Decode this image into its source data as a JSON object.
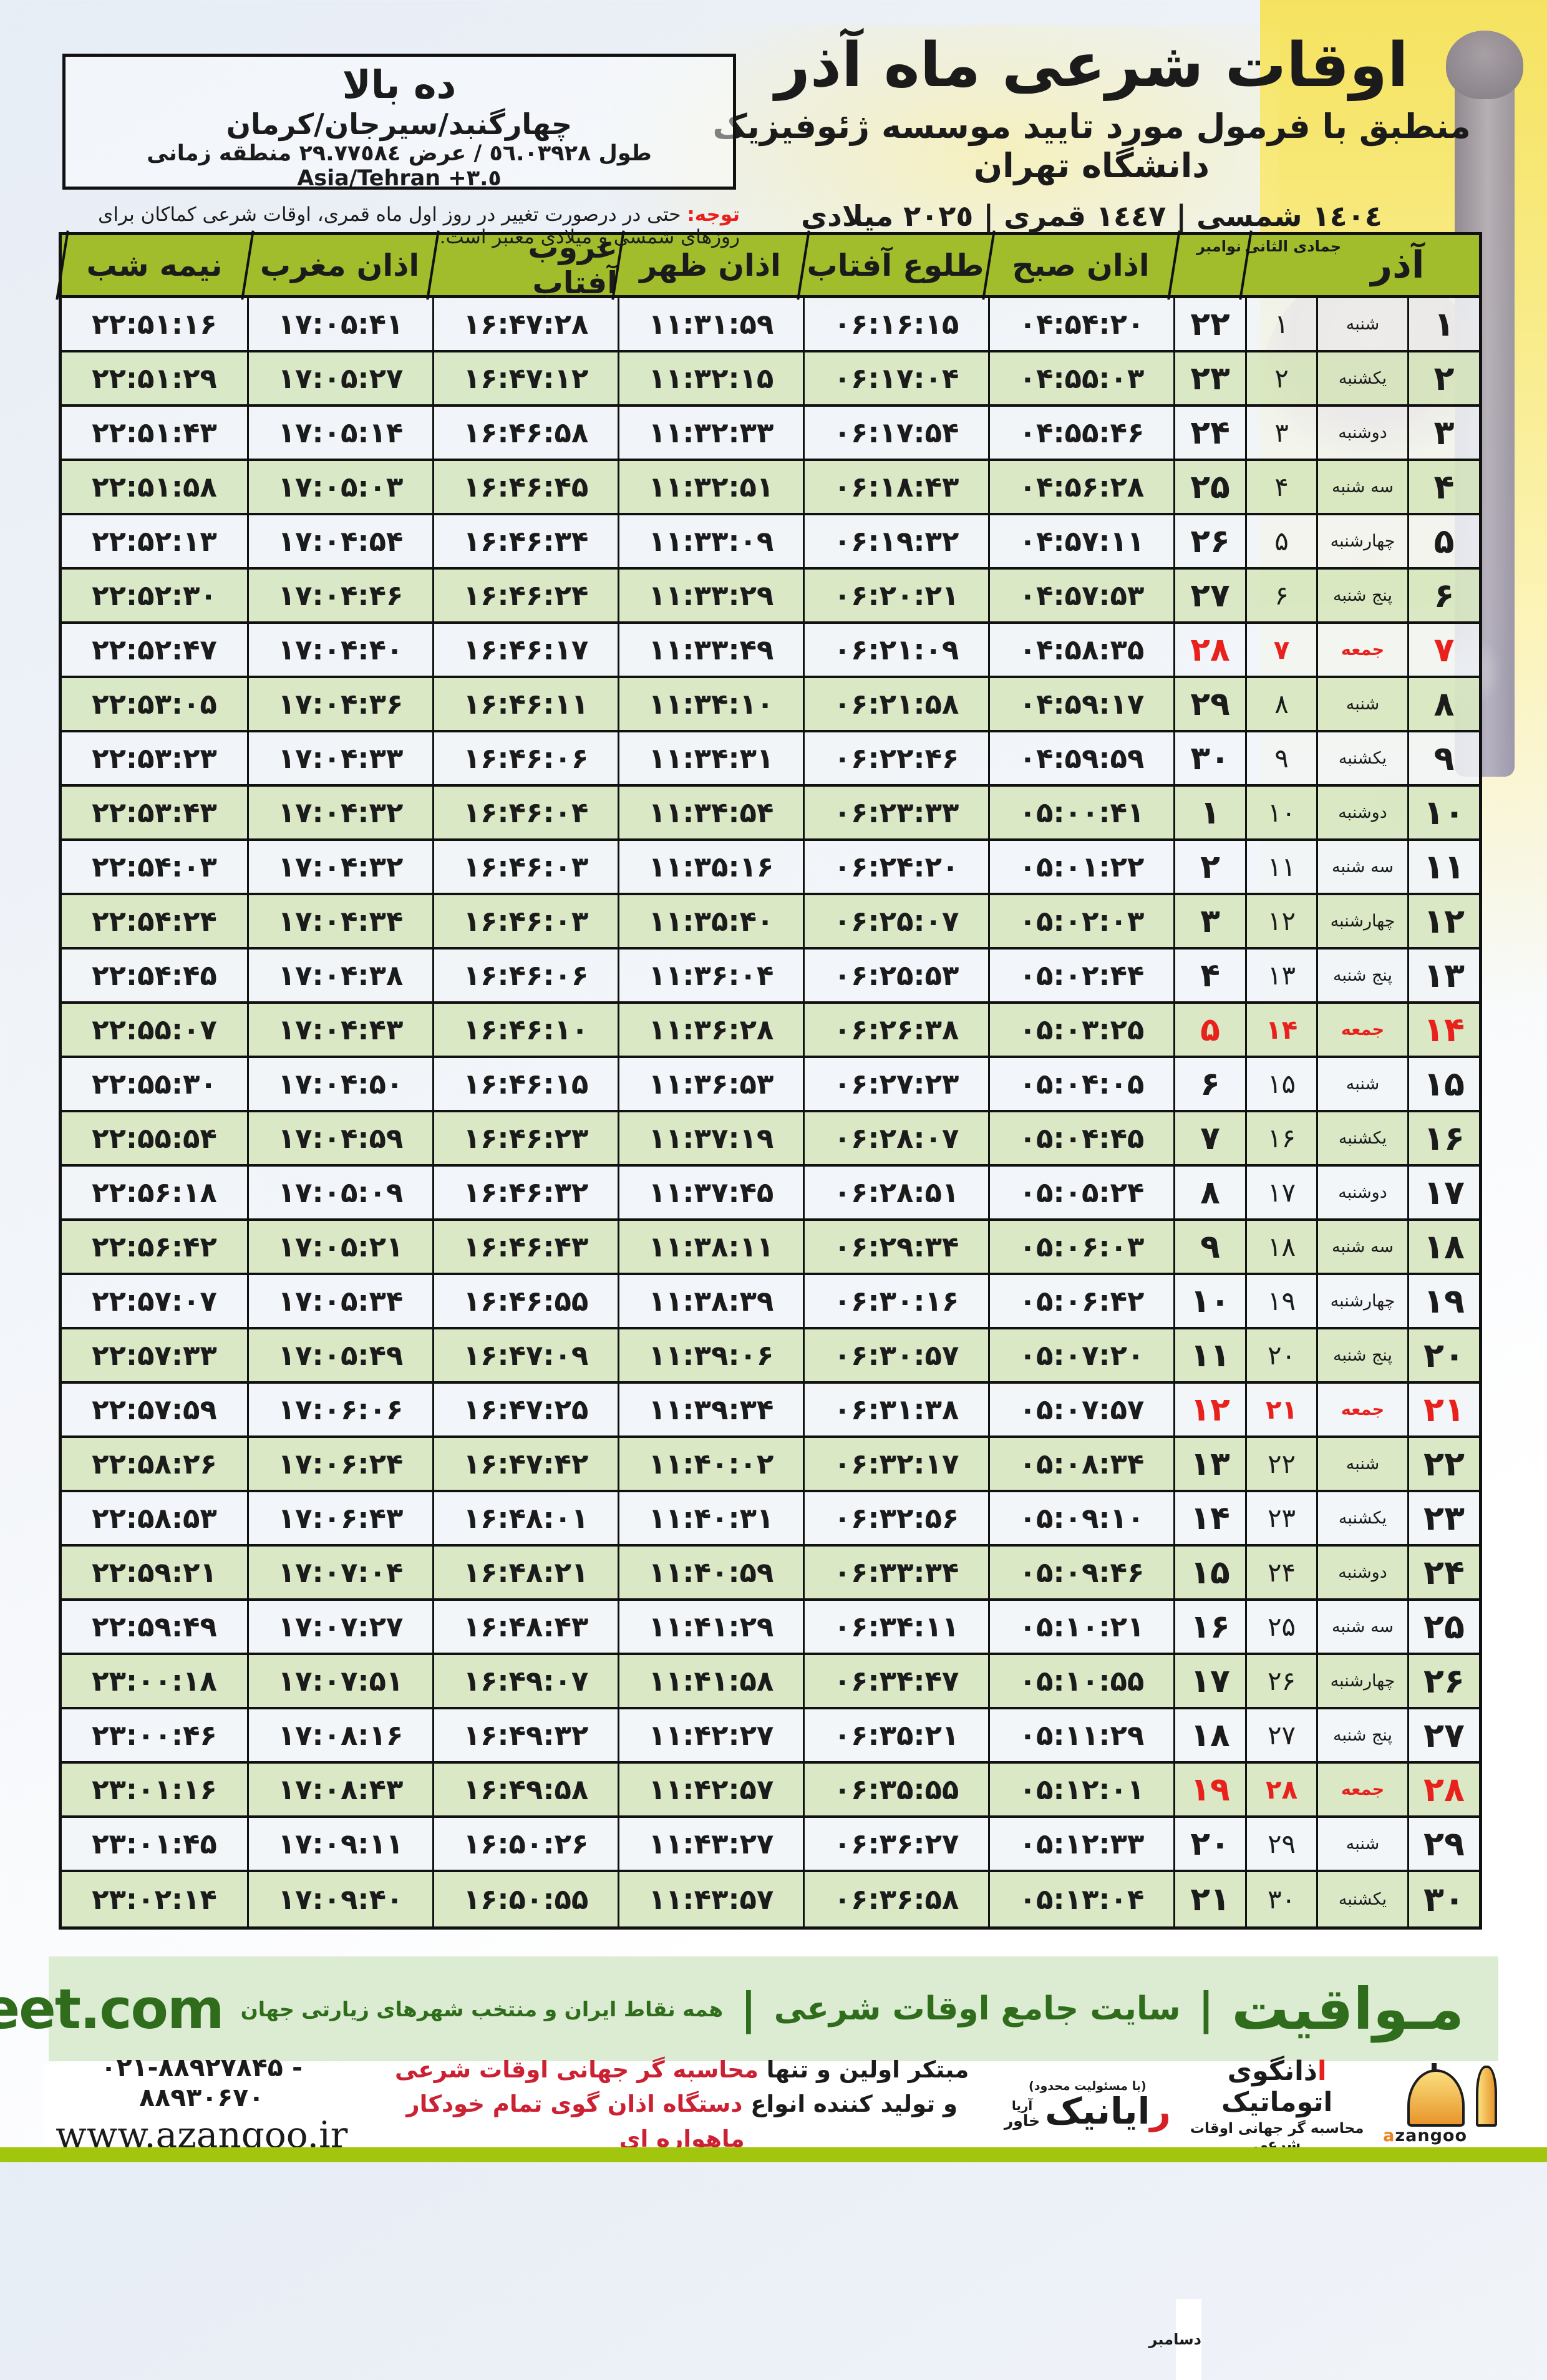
{
  "colors": {
    "red": "#e8211d",
    "green-header": "#a1bd2c",
    "band-bg": "#dcecd2",
    "band-text": "#2f6d1c",
    "bar-green": "#a2c50e"
  },
  "header": {
    "title": "اوقات شرعی ماه آذر",
    "subtitle": "منطبق با فرمول مورد تایید موسسه ژئوفیزیک دانشگاه تهران",
    "date_line": "١٤٠٤ شمسی | ١٤٤٧ قمری | ٢٠٢٥ میلادی"
  },
  "location": {
    "name": "ده بالا",
    "region": "چهارگنبد/سیرجان/کرمان",
    "coords": "طول ٥٦.٠٣٩٢٨ / عرض ٢٩.٧٧٥٨٤ منطقه زمانی",
    "timezone": "Asia/Tehran +٣.٥"
  },
  "notice": {
    "label": "توجه:",
    "text": "حتی در درصورت تغییر در روز اول ماه قمری، اوقات شرعی کماکان برای روزهای شمسی و میلادی معتبر است."
  },
  "table": {
    "month_header": "آذر",
    "lunar_header": "جمادی الثانی",
    "greg_header_top": "نوامبر",
    "greg_header_bottom": "دسامبر",
    "time_headers": {
      "fajr": "اذان صبح",
      "sunrise": "طلوع آفتاب",
      "dhuhr": "اذان ظهر",
      "sunset": "غروب آفتاب",
      "maghrib": "اذان مغرب",
      "midnight": "نیمه شب"
    },
    "rows": [
      {
        "azar": "۱",
        "weekday": "شنبه",
        "lunar": "۱",
        "greg": "۲۲",
        "fajr": "۰۴:۵۴:۲۰",
        "sunrise": "۰۶:۱۶:۱۵",
        "dhuhr": "۱۱:۳۱:۵۹",
        "sunset": "۱۶:۴۷:۲۸",
        "maghrib": "۱۷:۰۵:۴۱",
        "midnight": "۲۲:۵۱:۱۶",
        "friday": false
      },
      {
        "azar": "۲",
        "weekday": "یکشنبه",
        "lunar": "۲",
        "greg": "۲۳",
        "fajr": "۰۴:۵۵:۰۳",
        "sunrise": "۰۶:۱۷:۰۴",
        "dhuhr": "۱۱:۳۲:۱۵",
        "sunset": "۱۶:۴۷:۱۲",
        "maghrib": "۱۷:۰۵:۲۷",
        "midnight": "۲۲:۵۱:۲۹",
        "friday": false
      },
      {
        "azar": "۳",
        "weekday": "دوشنبه",
        "lunar": "۳",
        "greg": "۲۴",
        "fajr": "۰۴:۵۵:۴۶",
        "sunrise": "۰۶:۱۷:۵۴",
        "dhuhr": "۱۱:۳۲:۳۳",
        "sunset": "۱۶:۴۶:۵۸",
        "maghrib": "۱۷:۰۵:۱۴",
        "midnight": "۲۲:۵۱:۴۳",
        "friday": false
      },
      {
        "azar": "۴",
        "weekday": "سه شنبه",
        "lunar": "۴",
        "greg": "۲۵",
        "fajr": "۰۴:۵۶:۲۸",
        "sunrise": "۰۶:۱۸:۴۳",
        "dhuhr": "۱۱:۳۲:۵۱",
        "sunset": "۱۶:۴۶:۴۵",
        "maghrib": "۱۷:۰۵:۰۳",
        "midnight": "۲۲:۵۱:۵۸",
        "friday": false
      },
      {
        "azar": "۵",
        "weekday": "چهارشنبه",
        "lunar": "۵",
        "greg": "۲۶",
        "fajr": "۰۴:۵۷:۱۱",
        "sunrise": "۰۶:۱۹:۳۲",
        "dhuhr": "۱۱:۳۳:۰۹",
        "sunset": "۱۶:۴۶:۳۴",
        "maghrib": "۱۷:۰۴:۵۴",
        "midnight": "۲۲:۵۲:۱۳",
        "friday": false
      },
      {
        "azar": "۶",
        "weekday": "پنج شنبه",
        "lunar": "۶",
        "greg": "۲۷",
        "fajr": "۰۴:۵۷:۵۳",
        "sunrise": "۰۶:۲۰:۲۱",
        "dhuhr": "۱۱:۳۳:۲۹",
        "sunset": "۱۶:۴۶:۲۴",
        "maghrib": "۱۷:۰۴:۴۶",
        "midnight": "۲۲:۵۲:۳۰",
        "friday": false
      },
      {
        "azar": "۷",
        "weekday": "جمعه",
        "lunar": "۷",
        "greg": "۲۸",
        "fajr": "۰۴:۵۸:۳۵",
        "sunrise": "۰۶:۲۱:۰۹",
        "dhuhr": "۱۱:۳۳:۴۹",
        "sunset": "۱۶:۴۶:۱۷",
        "maghrib": "۱۷:۰۴:۴۰",
        "midnight": "۲۲:۵۲:۴۷",
        "friday": true
      },
      {
        "azar": "۸",
        "weekday": "شنبه",
        "lunar": "۸",
        "greg": "۲۹",
        "fajr": "۰۴:۵۹:۱۷",
        "sunrise": "۰۶:۲۱:۵۸",
        "dhuhr": "۱۱:۳۴:۱۰",
        "sunset": "۱۶:۴۶:۱۱",
        "maghrib": "۱۷:۰۴:۳۶",
        "midnight": "۲۲:۵۳:۰۵",
        "friday": false
      },
      {
        "azar": "۹",
        "weekday": "یکشنبه",
        "lunar": "۹",
        "greg": "۳۰",
        "fajr": "۰۴:۵۹:۵۹",
        "sunrise": "۰۶:۲۲:۴۶",
        "dhuhr": "۱۱:۳۴:۳۱",
        "sunset": "۱۶:۴۶:۰۶",
        "maghrib": "۱۷:۰۴:۳۳",
        "midnight": "۲۲:۵۳:۲۳",
        "friday": false
      },
      {
        "azar": "۱۰",
        "weekday": "دوشنبه",
        "lunar": "۱۰",
        "greg": "۱",
        "fajr": "۰۵:۰۰:۴۱",
        "sunrise": "۰۶:۲۳:۳۳",
        "dhuhr": "۱۱:۳۴:۵۴",
        "sunset": "۱۶:۴۶:۰۴",
        "maghrib": "۱۷:۰۴:۳۲",
        "midnight": "۲۲:۵۳:۴۳",
        "friday": false
      },
      {
        "azar": "۱۱",
        "weekday": "سه شنبه",
        "lunar": "۱۱",
        "greg": "۲",
        "fajr": "۰۵:۰۱:۲۲",
        "sunrise": "۰۶:۲۴:۲۰",
        "dhuhr": "۱۱:۳۵:۱۶",
        "sunset": "۱۶:۴۶:۰۳",
        "maghrib": "۱۷:۰۴:۳۲",
        "midnight": "۲۲:۵۴:۰۳",
        "friday": false
      },
      {
        "azar": "۱۲",
        "weekday": "چهارشنبه",
        "lunar": "۱۲",
        "greg": "۳",
        "fajr": "۰۵:۰۲:۰۳",
        "sunrise": "۰۶:۲۵:۰۷",
        "dhuhr": "۱۱:۳۵:۴۰",
        "sunset": "۱۶:۴۶:۰۳",
        "maghrib": "۱۷:۰۴:۳۴",
        "midnight": "۲۲:۵۴:۲۴",
        "friday": false
      },
      {
        "azar": "۱۳",
        "weekday": "پنج شنبه",
        "lunar": "۱۳",
        "greg": "۴",
        "fajr": "۰۵:۰۲:۴۴",
        "sunrise": "۰۶:۲۵:۵۳",
        "dhuhr": "۱۱:۳۶:۰۴",
        "sunset": "۱۶:۴۶:۰۶",
        "maghrib": "۱۷:۰۴:۳۸",
        "midnight": "۲۲:۵۴:۴۵",
        "friday": false
      },
      {
        "azar": "۱۴",
        "weekday": "جمعه",
        "lunar": "۱۴",
        "greg": "۵",
        "fajr": "۰۵:۰۳:۲۵",
        "sunrise": "۰۶:۲۶:۳۸",
        "dhuhr": "۱۱:۳۶:۲۸",
        "sunset": "۱۶:۴۶:۱۰",
        "maghrib": "۱۷:۰۴:۴۳",
        "midnight": "۲۲:۵۵:۰۷",
        "friday": true
      },
      {
        "azar": "۱۵",
        "weekday": "شنبه",
        "lunar": "۱۵",
        "greg": "۶",
        "fajr": "۰۵:۰۴:۰۵",
        "sunrise": "۰۶:۲۷:۲۳",
        "dhuhr": "۱۱:۳۶:۵۳",
        "sunset": "۱۶:۴۶:۱۵",
        "maghrib": "۱۷:۰۴:۵۰",
        "midnight": "۲۲:۵۵:۳۰",
        "friday": false
      },
      {
        "azar": "۱۶",
        "weekday": "یکشنبه",
        "lunar": "۱۶",
        "greg": "۷",
        "fajr": "۰۵:۰۴:۴۵",
        "sunrise": "۰۶:۲۸:۰۷",
        "dhuhr": "۱۱:۳۷:۱۹",
        "sunset": "۱۶:۴۶:۲۳",
        "maghrib": "۱۷:۰۴:۵۹",
        "midnight": "۲۲:۵۵:۵۴",
        "friday": false
      },
      {
        "azar": "۱۷",
        "weekday": "دوشنبه",
        "lunar": "۱۷",
        "greg": "۸",
        "fajr": "۰۵:۰۵:۲۴",
        "sunrise": "۰۶:۲۸:۵۱",
        "dhuhr": "۱۱:۳۷:۴۵",
        "sunset": "۱۶:۴۶:۳۲",
        "maghrib": "۱۷:۰۵:۰۹",
        "midnight": "۲۲:۵۶:۱۸",
        "friday": false
      },
      {
        "azar": "۱۸",
        "weekday": "سه شنبه",
        "lunar": "۱۸",
        "greg": "۹",
        "fajr": "۰۵:۰۶:۰۳",
        "sunrise": "۰۶:۲۹:۳۴",
        "dhuhr": "۱۱:۳۸:۱۱",
        "sunset": "۱۶:۴۶:۴۳",
        "maghrib": "۱۷:۰۵:۲۱",
        "midnight": "۲۲:۵۶:۴۲",
        "friday": false
      },
      {
        "azar": "۱۹",
        "weekday": "چهارشنبه",
        "lunar": "۱۹",
        "greg": "۱۰",
        "fajr": "۰۵:۰۶:۴۲",
        "sunrise": "۰۶:۳۰:۱۶",
        "dhuhr": "۱۱:۳۸:۳۹",
        "sunset": "۱۶:۴۶:۵۵",
        "maghrib": "۱۷:۰۵:۳۴",
        "midnight": "۲۲:۵۷:۰۷",
        "friday": false
      },
      {
        "azar": "۲۰",
        "weekday": "پنج شنبه",
        "lunar": "۲۰",
        "greg": "۱۱",
        "fajr": "۰۵:۰۷:۲۰",
        "sunrise": "۰۶:۳۰:۵۷",
        "dhuhr": "۱۱:۳۹:۰۶",
        "sunset": "۱۶:۴۷:۰۹",
        "maghrib": "۱۷:۰۵:۴۹",
        "midnight": "۲۲:۵۷:۳۳",
        "friday": false
      },
      {
        "azar": "۲۱",
        "weekday": "جمعه",
        "lunar": "۲۱",
        "greg": "۱۲",
        "fajr": "۰۵:۰۷:۵۷",
        "sunrise": "۰۶:۳۱:۳۸",
        "dhuhr": "۱۱:۳۹:۳۴",
        "sunset": "۱۶:۴۷:۲۵",
        "maghrib": "۱۷:۰۶:۰۶",
        "midnight": "۲۲:۵۷:۵۹",
        "friday": true
      },
      {
        "azar": "۲۲",
        "weekday": "شنبه",
        "lunar": "۲۲",
        "greg": "۱۳",
        "fajr": "۰۵:۰۸:۳۴",
        "sunrise": "۰۶:۳۲:۱۷",
        "dhuhr": "۱۱:۴۰:۰۲",
        "sunset": "۱۶:۴۷:۴۲",
        "maghrib": "۱۷:۰۶:۲۴",
        "midnight": "۲۲:۵۸:۲۶",
        "friday": false
      },
      {
        "azar": "۲۳",
        "weekday": "یکشنبه",
        "lunar": "۲۳",
        "greg": "۱۴",
        "fajr": "۰۵:۰۹:۱۰",
        "sunrise": "۰۶:۳۲:۵۶",
        "dhuhr": "۱۱:۴۰:۳۱",
        "sunset": "۱۶:۴۸:۰۱",
        "maghrib": "۱۷:۰۶:۴۳",
        "midnight": "۲۲:۵۸:۵۳",
        "friday": false
      },
      {
        "azar": "۲۴",
        "weekday": "دوشنبه",
        "lunar": "۲۴",
        "greg": "۱۵",
        "fajr": "۰۵:۰۹:۴۶",
        "sunrise": "۰۶:۳۳:۳۴",
        "dhuhr": "۱۱:۴۰:۵۹",
        "sunset": "۱۶:۴۸:۲۱",
        "maghrib": "۱۷:۰۷:۰۴",
        "midnight": "۲۲:۵۹:۲۱",
        "friday": false
      },
      {
        "azar": "۲۵",
        "weekday": "سه شنبه",
        "lunar": "۲۵",
        "greg": "۱۶",
        "fajr": "۰۵:۱۰:۲۱",
        "sunrise": "۰۶:۳۴:۱۱",
        "dhuhr": "۱۱:۴۱:۲۹",
        "sunset": "۱۶:۴۸:۴۳",
        "maghrib": "۱۷:۰۷:۲۷",
        "midnight": "۲۲:۵۹:۴۹",
        "friday": false
      },
      {
        "azar": "۲۶",
        "weekday": "چهارشنبه",
        "lunar": "۲۶",
        "greg": "۱۷",
        "fajr": "۰۵:۱۰:۵۵",
        "sunrise": "۰۶:۳۴:۴۷",
        "dhuhr": "۱۱:۴۱:۵۸",
        "sunset": "۱۶:۴۹:۰۷",
        "maghrib": "۱۷:۰۷:۵۱",
        "midnight": "۲۳:۰۰:۱۸",
        "friday": false
      },
      {
        "azar": "۲۷",
        "weekday": "پنج شنبه",
        "lunar": "۲۷",
        "greg": "۱۸",
        "fajr": "۰۵:۱۱:۲۹",
        "sunrise": "۰۶:۳۵:۲۱",
        "dhuhr": "۱۱:۴۲:۲۷",
        "sunset": "۱۶:۴۹:۳۲",
        "maghrib": "۱۷:۰۸:۱۶",
        "midnight": "۲۳:۰۰:۴۶",
        "friday": false
      },
      {
        "azar": "۲۸",
        "weekday": "جمعه",
        "lunar": "۲۸",
        "greg": "۱۹",
        "fajr": "۰۵:۱۲:۰۱",
        "sunrise": "۰۶:۳۵:۵۵",
        "dhuhr": "۱۱:۴۲:۵۷",
        "sunset": "۱۶:۴۹:۵۸",
        "maghrib": "۱۷:۰۸:۴۳",
        "midnight": "۲۳:۰۱:۱۶",
        "friday": true
      },
      {
        "azar": "۲۹",
        "weekday": "شنبه",
        "lunar": "۲۹",
        "greg": "۲۰",
        "fajr": "۰۵:۱۲:۳۳",
        "sunrise": "۰۶:۳۶:۲۷",
        "dhuhr": "۱۱:۴۳:۲۷",
        "sunset": "۱۶:۵۰:۲۶",
        "maghrib": "۱۷:۰۹:۱۱",
        "midnight": "۲۳:۰۱:۴۵",
        "friday": false
      },
      {
        "azar": "۳۰",
        "weekday": "یکشنبه",
        "lunar": "۳۰",
        "greg": "۲۱",
        "fajr": "۰۵:۱۳:۰۴",
        "sunrise": "۰۶:۳۶:۵۸",
        "dhuhr": "۱۱:۴۳:۵۷",
        "sunset": "۱۶:۵۰:۵۵",
        "maghrib": "۱۷:۰۹:۴۰",
        "midnight": "۲۳:۰۲:۱۴",
        "friday": false
      }
    ]
  },
  "band": {
    "brand": "مـواقیت",
    "divider": "|",
    "tagline": "سایت جامع اوقات شرعی",
    "subtag": "همه نقاط ایران و منتخب شهرهای زیارتی جهان",
    "url": "mavaqeet.com"
  },
  "bottom": {
    "azangoo_first": "ا",
    "azangoo_rest": "ذانگوی اتوماتیک",
    "azangoo_sub": "محاسبه گر جهانی اوقات شرعی",
    "azangoo_en": "azangoo",
    "rayanik_note": "(با مسئولیت محدود)",
    "rayanik_first": "ر",
    "rayanik_rest": "ایانیک",
    "rayanik_aria": "آریا",
    "rayanik_khavar": "خاور",
    "line1_black": "مبتکر اولین و تنها ",
    "line1_red": "محاسبه گر جهانی اوقات شرعی",
    "line2_black": "و تولید کننده انواع ",
    "line2_red": "دستگاه اذان گوی تمام خودکار ماهواره ای",
    "phones": "۰۲۱-۸۸۹۲۷۸۴۵ - ۸۸۹۳۰۶۷۰",
    "site": "www.azangoo.ir"
  }
}
